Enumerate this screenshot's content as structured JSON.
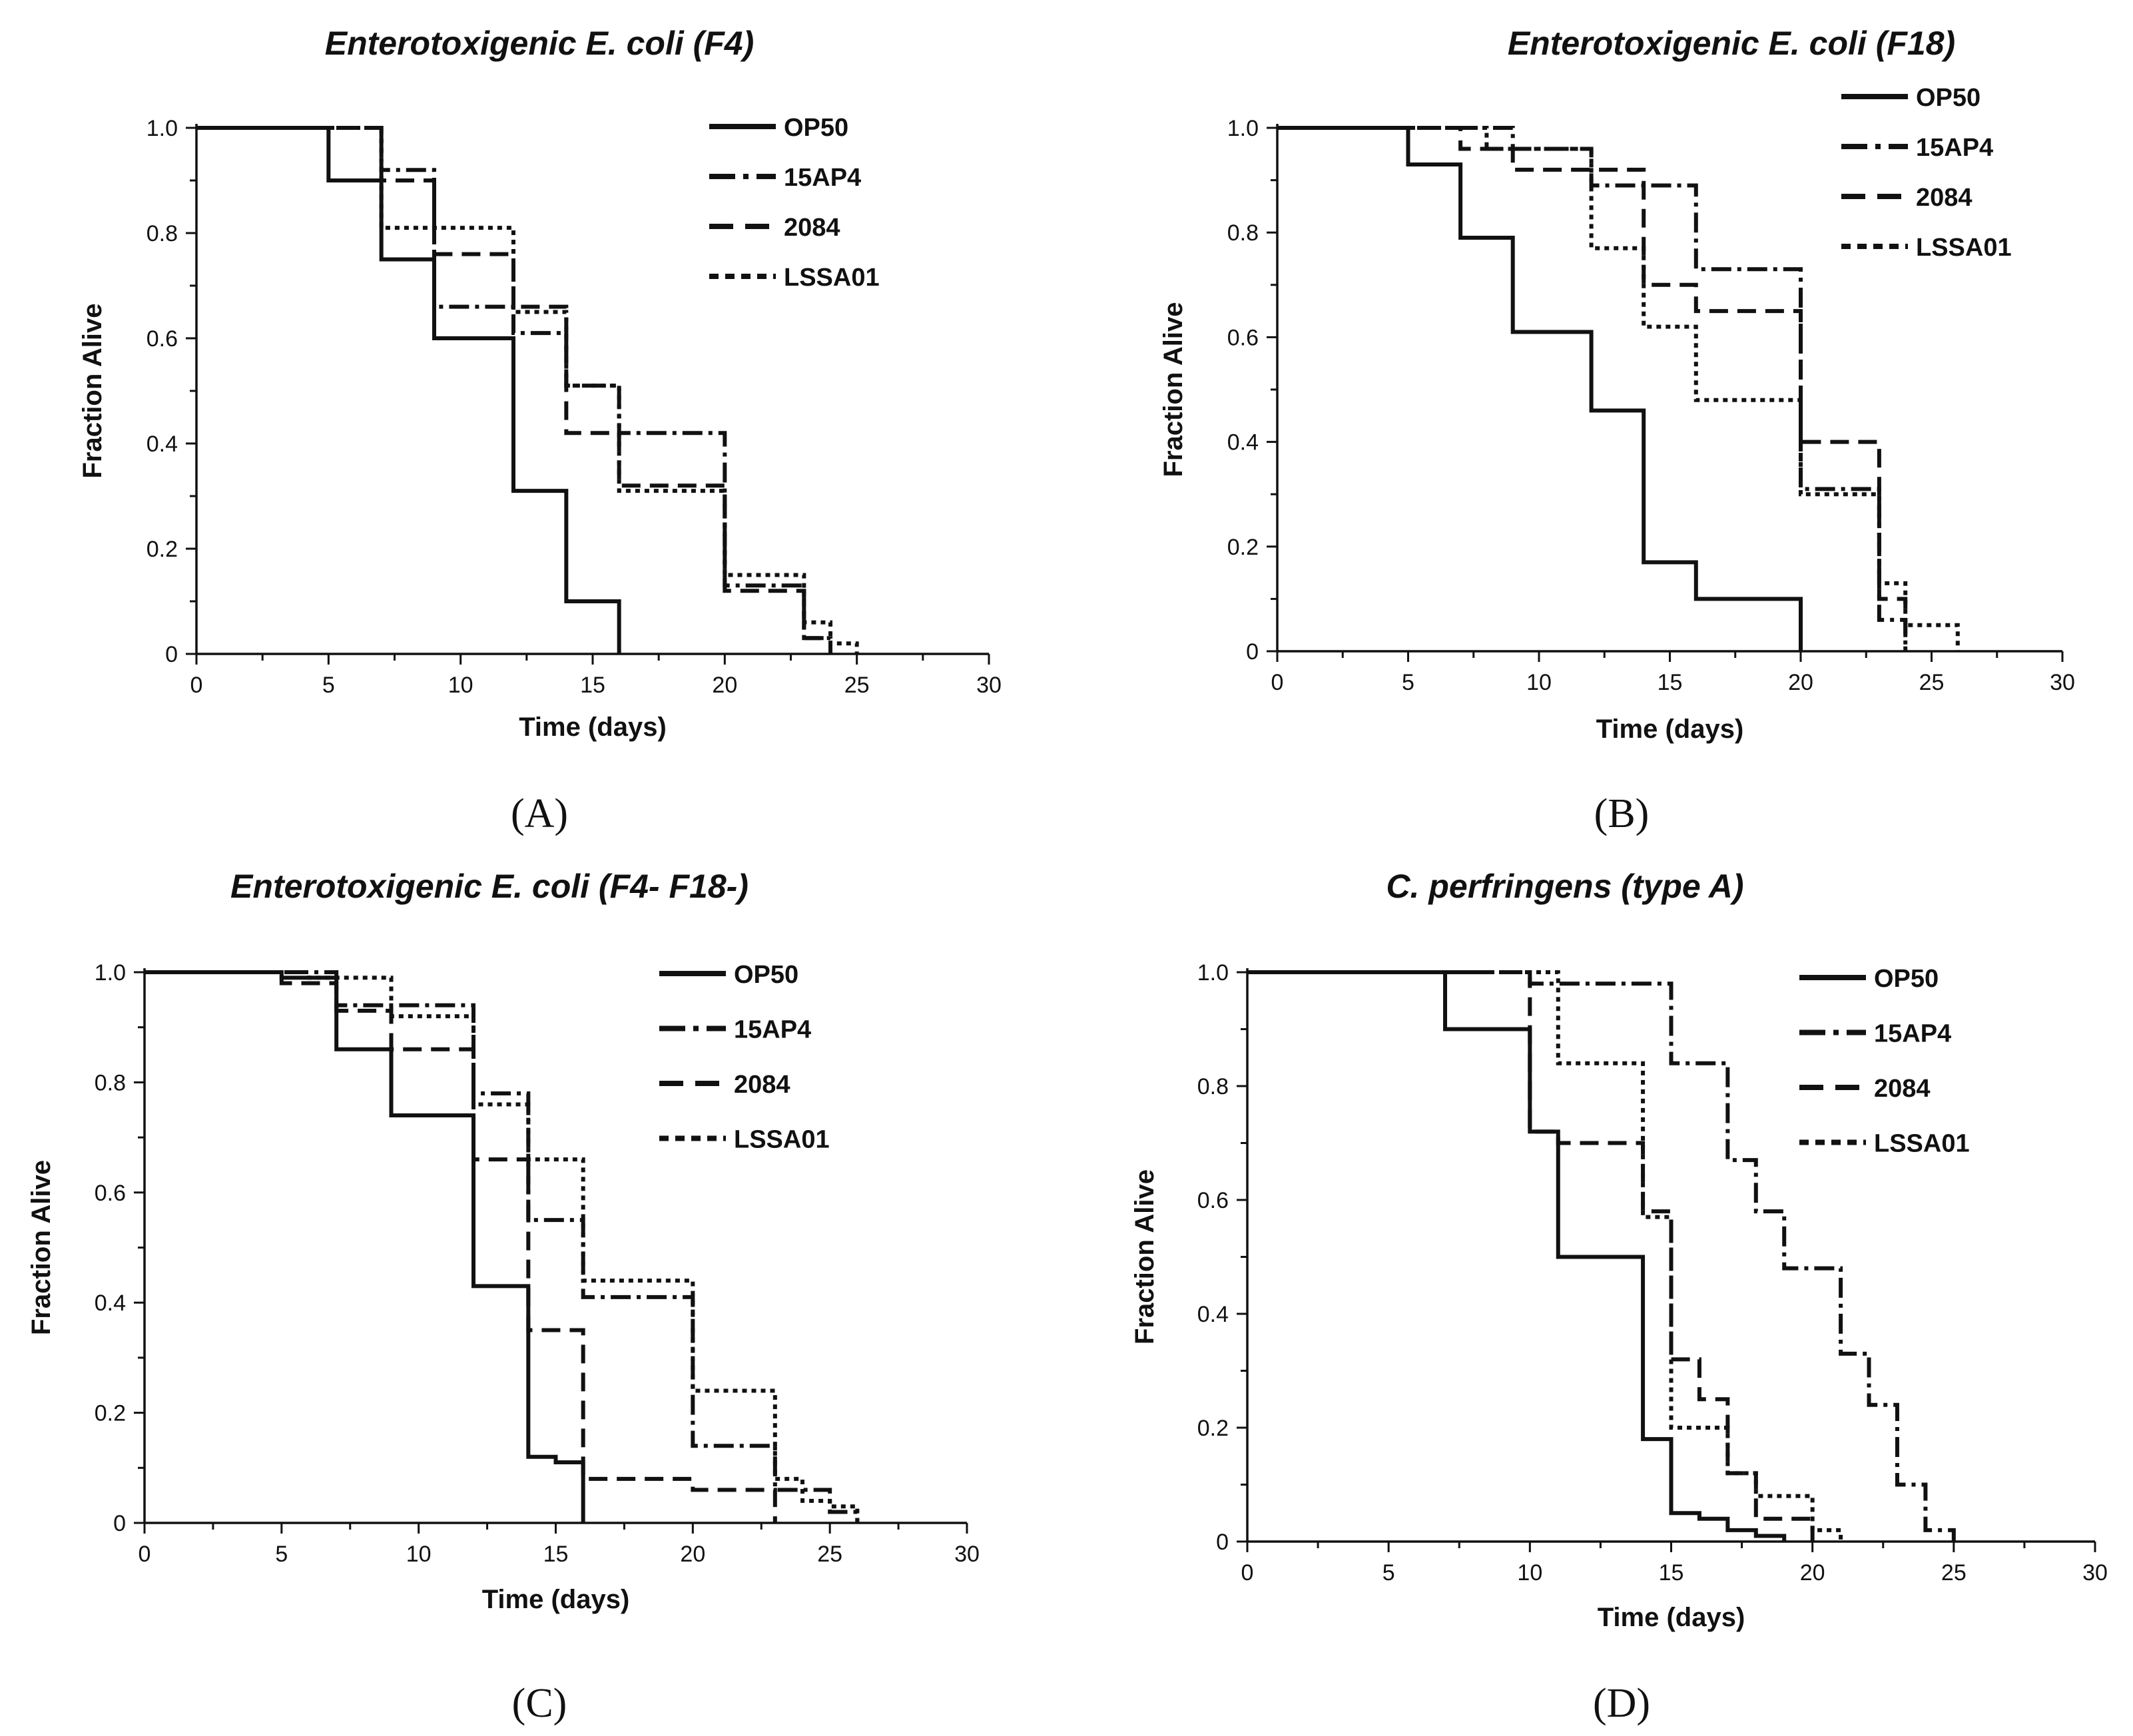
{
  "figure": {
    "panels": [
      {
        "letter": "A",
        "chart_data": {
          "type": "line",
          "title": "Enterotoxigenic E. coli (F4)",
          "xlabel": "Time (days)",
          "ylabel": "Fraction Alive",
          "xlim": [
            0,
            30
          ],
          "ylim": [
            0,
            1.0
          ],
          "xticks": [
            "0",
            "5",
            "10",
            "15",
            "20",
            "25",
            "30"
          ],
          "yticks": [
            "0",
            "0.2",
            "0.4",
            "0.6",
            "0.8",
            "1.0"
          ],
          "legend": "top-right",
          "series": [
            {
              "name": "OP50",
              "style": "solid",
              "x": [
                0,
                5,
                7,
                9,
                12,
                14,
                16
              ],
              "y": [
                1.0,
                0.9,
                0.75,
                0.6,
                0.31,
                0.1,
                0
              ]
            },
            {
              "name": "15AP4",
              "style": "dashdot",
              "x": [
                0,
                7,
                9,
                12,
                14,
                16,
                20,
                23,
                24
              ],
              "y": [
                1.0,
                0.92,
                0.66,
                0.61,
                0.51,
                0.42,
                0.13,
                0.03,
                0
              ]
            },
            {
              "name": "2084",
              "style": "dash",
              "x": [
                0,
                7,
                9,
                12,
                14,
                16,
                20,
                23,
                24
              ],
              "y": [
                1.0,
                0.9,
                0.76,
                0.66,
                0.42,
                0.32,
                0.12,
                0.03,
                0
              ]
            },
            {
              "name": "LSSA01",
              "style": "dot",
              "x": [
                0,
                7,
                9,
                12,
                14,
                16,
                20,
                23,
                24,
                25
              ],
              "y": [
                1.0,
                0.81,
                0.81,
                0.65,
                0.51,
                0.31,
                0.15,
                0.06,
                0.02,
                0
              ]
            }
          ]
        }
      },
      {
        "letter": "B",
        "chart_data": {
          "type": "line",
          "title": "Enterotoxigenic E. coli (F18)",
          "xlabel": "Time (days)",
          "ylabel": "Fraction Alive",
          "xlim": [
            0,
            30
          ],
          "ylim": [
            0,
            1.0
          ],
          "xticks": [
            "0",
            "5",
            "10",
            "15",
            "20",
            "25",
            "30"
          ],
          "yticks": [
            "0",
            "0.2",
            "0.4",
            "0.6",
            "0.8",
            "1.0"
          ],
          "legend": "top-right",
          "series": [
            {
              "name": "OP50",
              "style": "solid",
              "x": [
                0,
                5,
                7,
                9,
                12,
                14,
                16,
                20
              ],
              "y": [
                1.0,
                0.93,
                0.79,
                0.61,
                0.46,
                0.17,
                0.1,
                0
              ]
            },
            {
              "name": "15AP4",
              "style": "dashdot",
              "x": [
                0,
                9,
                12,
                16,
                20,
                23,
                24
              ],
              "y": [
                1.0,
                0.96,
                0.89,
                0.73,
                0.31,
                0.06,
                0
              ]
            },
            {
              "name": "2084",
              "style": "dash",
              "x": [
                0,
                7,
                9,
                14,
                16,
                20,
                23,
                24
              ],
              "y": [
                1.0,
                0.96,
                0.92,
                0.7,
                0.65,
                0.4,
                0.1,
                0
              ]
            },
            {
              "name": "LSSA01",
              "style": "dot",
              "x": [
                0,
                8,
                12,
                14,
                16,
                20,
                23,
                24,
                26
              ],
              "y": [
                1.0,
                0.96,
                0.77,
                0.62,
                0.48,
                0.3,
                0.13,
                0.05,
                0
              ]
            }
          ]
        }
      },
      {
        "letter": "C",
        "chart_data": {
          "type": "line",
          "title": "Enterotoxigenic E. coli (F4- F18-)",
          "xlabel": "Time (days)",
          "ylabel": "Fraction Alive",
          "xlim": [
            0,
            30
          ],
          "ylim": [
            0,
            1.0
          ],
          "xticks": [
            "0",
            "5",
            "10",
            "15",
            "20",
            "25",
            "30"
          ],
          "yticks": [
            "0",
            "0.2",
            "0.4",
            "0.6",
            "0.8",
            "1.0"
          ],
          "legend": "top-right",
          "series": [
            {
              "name": "OP50",
              "style": "solid",
              "x": [
                0,
                5,
                7,
                9,
                12,
                14,
                15,
                16
              ],
              "y": [
                1.0,
                0.99,
                0.86,
                0.74,
                0.43,
                0.12,
                0.11,
                0
              ]
            },
            {
              "name": "15AP4",
              "style": "dashdot",
              "x": [
                0,
                7,
                12,
                14,
                16,
                20,
                23,
                25,
                26
              ],
              "y": [
                1.0,
                0.94,
                0.78,
                0.55,
                0.41,
                0.14,
                0.06,
                0.02,
                0
              ]
            },
            {
              "name": "2084",
              "style": "dash",
              "x": [
                0,
                5,
                7,
                9,
                12,
                14,
                15,
                16,
                20,
                23
              ],
              "y": [
                1.0,
                0.98,
                0.93,
                0.86,
                0.66,
                0.35,
                0.35,
                0.08,
                0.06,
                0
              ]
            },
            {
              "name": "LSSA01",
              "style": "dot",
              "x": [
                0,
                6,
                9,
                12,
                14,
                16,
                20,
                23,
                24,
                25,
                26
              ],
              "y": [
                1.0,
                0.99,
                0.92,
                0.76,
                0.66,
                0.44,
                0.24,
                0.08,
                0.04,
                0.03,
                0
              ]
            }
          ]
        }
      },
      {
        "letter": "D",
        "chart_data": {
          "type": "line",
          "title": "C. perfringens (type A)",
          "xlabel": "Time (days)",
          "ylabel": "Fraction Alive",
          "xlim": [
            0,
            30
          ],
          "ylim": [
            0,
            1.0
          ],
          "xticks": [
            "0",
            "5",
            "10",
            "15",
            "20",
            "25",
            "30"
          ],
          "yticks": [
            "0",
            "0.2",
            "0.4",
            "0.6",
            "0.8",
            "1.0"
          ],
          "legend": "top-right",
          "series": [
            {
              "name": "OP50",
              "style": "solid",
              "x": [
                0,
                7,
                10,
                11,
                14,
                15,
                16,
                17,
                18,
                19
              ],
              "y": [
                1.0,
                0.9,
                0.72,
                0.5,
                0.18,
                0.05,
                0.04,
                0.02,
                0.01,
                0
              ]
            },
            {
              "name": "15AP4",
              "style": "dashdot",
              "x": [
                0,
                10,
                15,
                17,
                18,
                19,
                21,
                22,
                23,
                24,
                25
              ],
              "y": [
                1.0,
                0.98,
                0.84,
                0.67,
                0.58,
                0.48,
                0.33,
                0.24,
                0.1,
                0.02,
                0
              ]
            },
            {
              "name": "2084",
              "style": "dash",
              "x": [
                0,
                10,
                11,
                14,
                15,
                16,
                17,
                18,
                20
              ],
              "y": [
                1.0,
                0.72,
                0.7,
                0.58,
                0.32,
                0.25,
                0.12,
                0.04,
                0
              ]
            },
            {
              "name": "LSSA01",
              "style": "dot",
              "x": [
                0,
                11,
                14,
                15,
                17,
                18,
                20,
                21
              ],
              "y": [
                1.0,
                0.84,
                0.57,
                0.2,
                0.12,
                0.08,
                0.02,
                0
              ]
            }
          ]
        }
      }
    ]
  }
}
